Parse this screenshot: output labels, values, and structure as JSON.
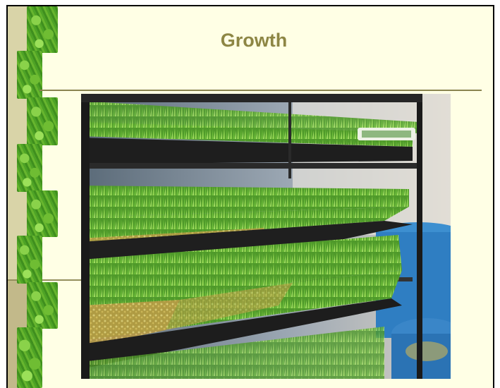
{
  "slide": {
    "title": "Growth",
    "colors": {
      "background": "#ffffe5",
      "title": "#8d8644",
      "rule": "#8a8450",
      "sidebar_light": "#d9d4a8",
      "sidebar_dark": "#c2b98a"
    },
    "photo_description_icon": "grass-trays-photo"
  }
}
